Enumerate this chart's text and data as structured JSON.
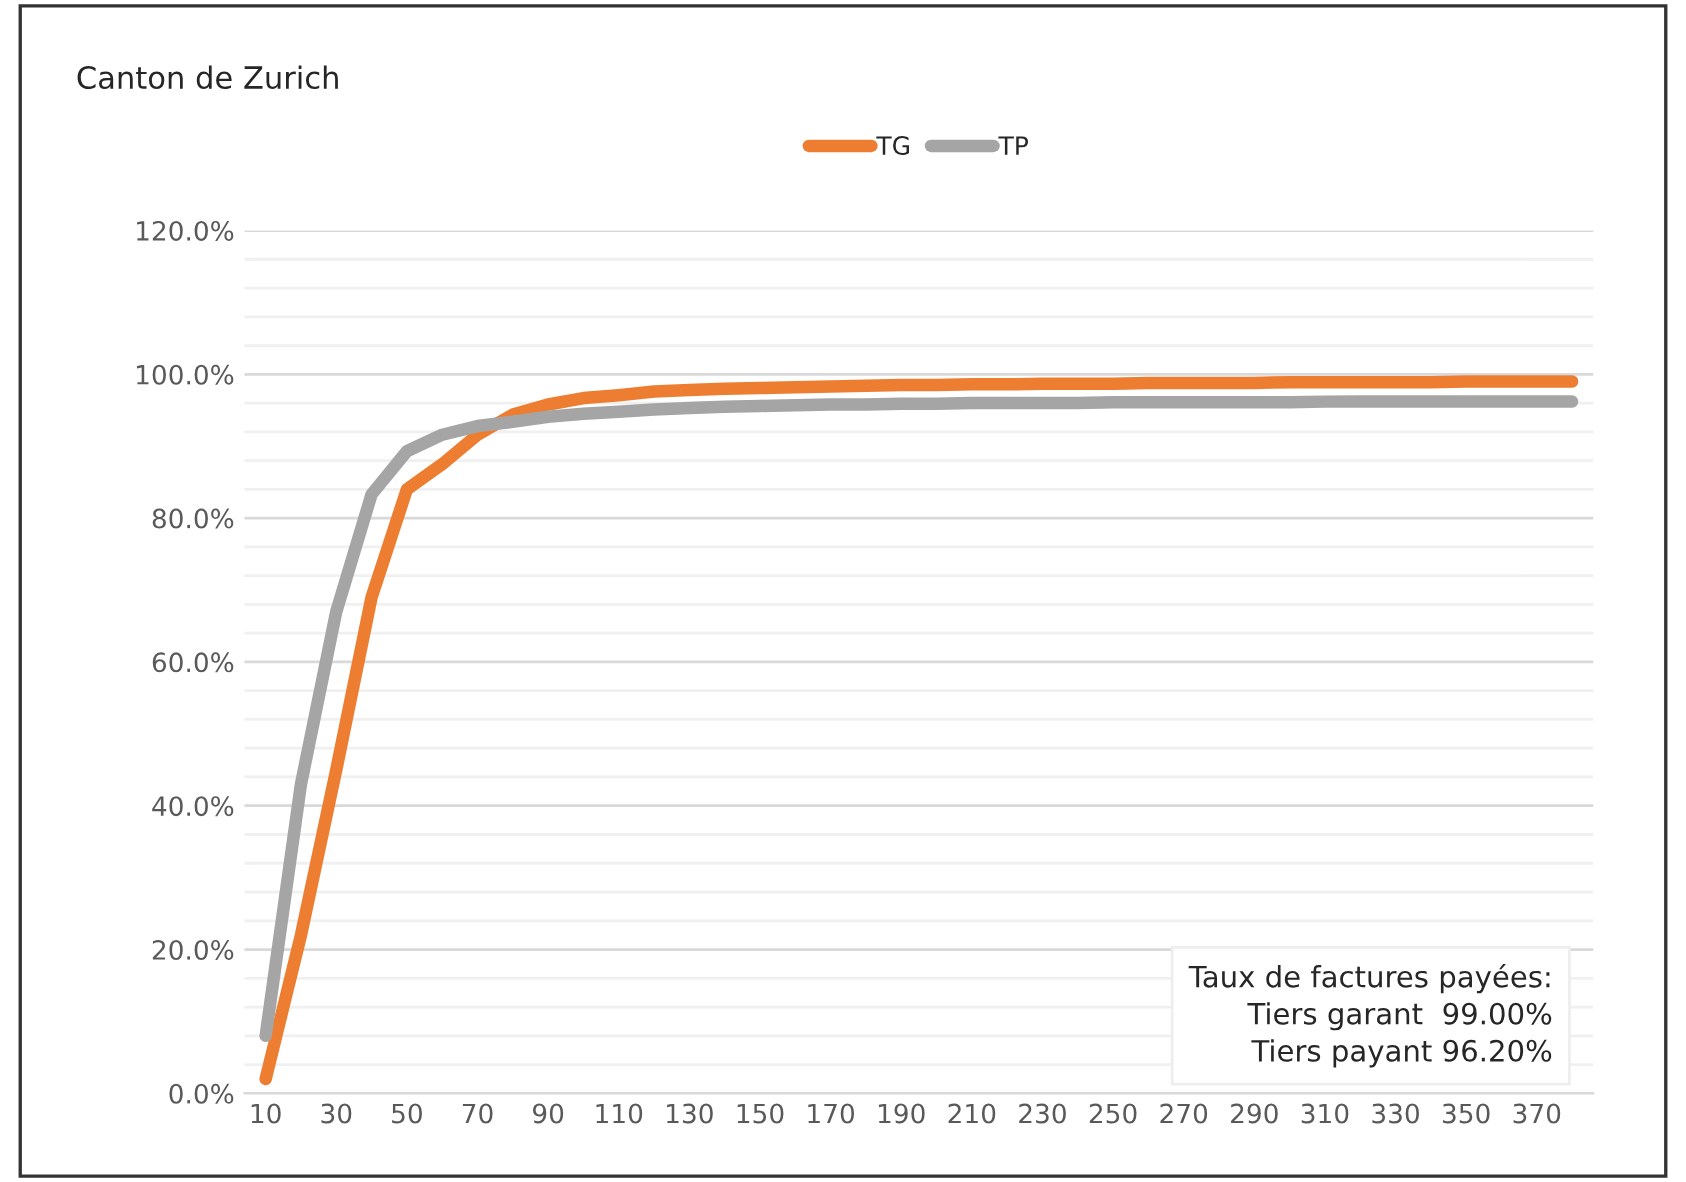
{
  "chart_data": {
    "type": "line",
    "title": "Canton de Zurich",
    "categories": [
      "10",
      null,
      "30",
      null,
      "50",
      null,
      "70",
      null,
      "90",
      null,
      "110",
      null,
      "130",
      null,
      "150",
      null,
      "170",
      null,
      "190",
      null,
      "210",
      null,
      "230",
      null,
      "250",
      null,
      "270",
      null,
      "290",
      null,
      "310",
      null,
      "330",
      null,
      "350",
      null,
      "370",
      null
    ],
    "series": [
      {
        "name": "TG",
        "color": "#ed7d31",
        "values": [
          2.0,
          22.0,
          45.0,
          69.0,
          84.0,
          87.5,
          91.6,
          94.4,
          95.8,
          96.7,
          97.1,
          97.6,
          97.8,
          98.0,
          98.1,
          98.2,
          98.3,
          98.4,
          98.5,
          98.5,
          98.6,
          98.6,
          98.7,
          98.7,
          98.7,
          98.8,
          98.8,
          98.8,
          98.8,
          98.9,
          98.9,
          98.9,
          98.9,
          98.9,
          99.0,
          99.0,
          99.0,
          99.0
        ]
      },
      {
        "name": "TP",
        "color": "#a5a5a5",
        "values": [
          8.0,
          43.0,
          67.0,
          83.3,
          89.3,
          91.6,
          92.8,
          93.4,
          94.1,
          94.5,
          94.8,
          95.1,
          95.3,
          95.5,
          95.6,
          95.7,
          95.8,
          95.8,
          95.9,
          95.9,
          96.0,
          96.0,
          96.0,
          96.0,
          96.1,
          96.1,
          96.1,
          96.1,
          96.1,
          96.1,
          96.2,
          96.2,
          96.2,
          96.2,
          96.2,
          96.2,
          96.2,
          96.2
        ]
      }
    ],
    "ylim": [
      0,
      120
    ],
    "yticks": [
      {
        "value": 0,
        "label": "0.0%"
      },
      {
        "value": 4,
        "label": null
      },
      {
        "value": 8,
        "label": null
      },
      {
        "value": 12,
        "label": null
      },
      {
        "value": 16,
        "label": null
      },
      {
        "value": 20,
        "label": "20.0%"
      },
      {
        "value": 24,
        "label": null
      },
      {
        "value": 28,
        "label": null
      },
      {
        "value": 32,
        "label": null
      },
      {
        "value": 36,
        "label": null
      },
      {
        "value": 40,
        "label": "40.0%"
      },
      {
        "value": 44,
        "label": null
      },
      {
        "value": 48,
        "label": null
      },
      {
        "value": 52,
        "label": null
      },
      {
        "value": 56,
        "label": null
      },
      {
        "value": 60,
        "label": "60.0%"
      },
      {
        "value": 64,
        "label": null
      },
      {
        "value": 68,
        "label": null
      },
      {
        "value": 72,
        "label": null
      },
      {
        "value": 76,
        "label": null
      },
      {
        "value": 80,
        "label": "80.0%"
      },
      {
        "value": 84,
        "label": null
      },
      {
        "value": 88,
        "label": null
      },
      {
        "value": 92,
        "label": null
      },
      {
        "value": 96,
        "label": null
      },
      {
        "value": 100,
        "label": "100.0%"
      },
      {
        "value": 104,
        "label": null
      },
      {
        "value": 108,
        "label": null
      },
      {
        "value": 112,
        "label": null
      },
      {
        "value": 116,
        "label": null
      },
      {
        "value": 120,
        "label": "120.0%"
      }
    ],
    "grid": "y",
    "legend": "top",
    "marker": "none",
    "line_style": "solid",
    "annotations": [
      "Taux de factures payées:\nTiers garant  99.00%\nTiers payant 96.20%"
    ]
  }
}
